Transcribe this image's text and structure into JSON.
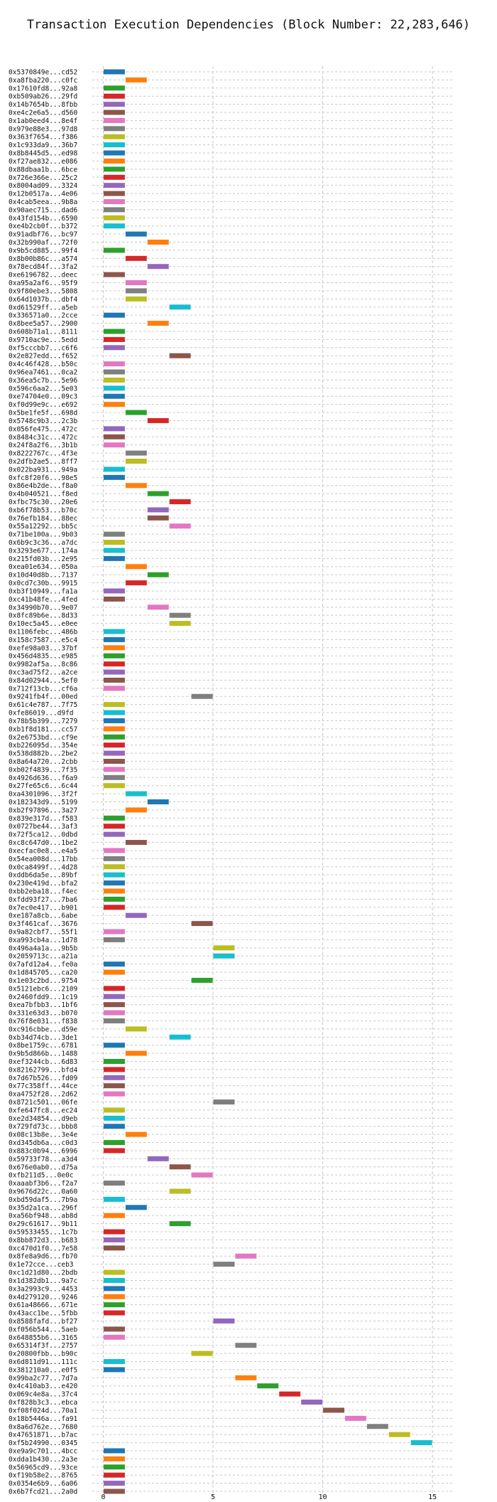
{
  "chart_data": {
    "type": "bar",
    "orientation": "horizontal",
    "title": "Transaction Execution Dependencies (Block Number: 22,283,646)",
    "xlabel": "",
    "ylabel": "",
    "xlim": [
      -0.5,
      16
    ],
    "x_ticks": [
      0,
      5,
      10,
      15
    ],
    "grid": true,
    "palette": [
      "#1f77b4",
      "#ff7f0e",
      "#2ca02c",
      "#d62728",
      "#9467bd",
      "#8c564b",
      "#e377c2",
      "#7f7f7f",
      "#bcbd22",
      "#17becf"
    ],
    "transactions": [
      {
        "hash": "0x5370849e...cd52",
        "start": 0,
        "end": 1
      },
      {
        "hash": "0xa8fba220...c0fc",
        "start": 1,
        "end": 2
      },
      {
        "hash": "0x17610fd8...92a8",
        "start": 0,
        "end": 1
      },
      {
        "hash": "0xb509ab26...29fd",
        "start": 0,
        "end": 1
      },
      {
        "hash": "0x14b7654b...8fbb",
        "start": 0,
        "end": 1
      },
      {
        "hash": "0xe4c2e6a5...d560",
        "start": 0,
        "end": 1
      },
      {
        "hash": "0x1ab0eed4...8e4f",
        "start": 0,
        "end": 1
      },
      {
        "hash": "0x979e88e3...97d8",
        "start": 0,
        "end": 1
      },
      {
        "hash": "0x363f7654...f386",
        "start": 0,
        "end": 1
      },
      {
        "hash": "0x1c933da9...36b7",
        "start": 0,
        "end": 1
      },
      {
        "hash": "0x8b8445d5...ed98",
        "start": 0,
        "end": 1
      },
      {
        "hash": "0xf27ae832...e086",
        "start": 0,
        "end": 1
      },
      {
        "hash": "0x88dbaa1b...6bce",
        "start": 0,
        "end": 1
      },
      {
        "hash": "0x726e366e...25c2",
        "start": 0,
        "end": 1
      },
      {
        "hash": "0x8004ad09...3324",
        "start": 0,
        "end": 1
      },
      {
        "hash": "0x12b0517a...4e06",
        "start": 0,
        "end": 1
      },
      {
        "hash": "0x4cab5eea...9b8a",
        "start": 0,
        "end": 1
      },
      {
        "hash": "0x90aec715...dad6",
        "start": 0,
        "end": 1
      },
      {
        "hash": "0x43fd154b...6590",
        "start": 0,
        "end": 1
      },
      {
        "hash": "0xe4b2cb0f...b372",
        "start": 0,
        "end": 1
      },
      {
        "hash": "0x91adbf76...bc97",
        "start": 1,
        "end": 2
      },
      {
        "hash": "0x32b990af...72f0",
        "start": 2,
        "end": 3
      },
      {
        "hash": "0x9b5cd885...99f4",
        "start": 0,
        "end": 1
      },
      {
        "hash": "0x8b00b86c...a574",
        "start": 1,
        "end": 2
      },
      {
        "hash": "0x78ecd84f...3fa2",
        "start": 2,
        "end": 3
      },
      {
        "hash": "0xe6196782...deec",
        "start": 0,
        "end": 1
      },
      {
        "hash": "0xa95a2af6...95f9",
        "start": 1,
        "end": 2
      },
      {
        "hash": "0x9f80ebe3...5808",
        "start": 1,
        "end": 2
      },
      {
        "hash": "0x64d1037b...dbf4",
        "start": 1,
        "end": 2
      },
      {
        "hash": "0xd61529ff...a5eb",
        "start": 3,
        "end": 4
      },
      {
        "hash": "0x336571a0...2cce",
        "start": 0,
        "end": 1
      },
      {
        "hash": "0x8bee5a57...2900",
        "start": 2,
        "end": 3
      },
      {
        "hash": "0x608b71a1...8111",
        "start": 0,
        "end": 1
      },
      {
        "hash": "0x9710ac9e...5edd",
        "start": 0,
        "end": 1
      },
      {
        "hash": "0xf5cccbb7...c6f6",
        "start": 0,
        "end": 1
      },
      {
        "hash": "0x2e827edd...f652",
        "start": 3,
        "end": 4
      },
      {
        "hash": "0x4c46f428...b50c",
        "start": 0,
        "end": 1
      },
      {
        "hash": "0x96ea7461...0ca2",
        "start": 0,
        "end": 1
      },
      {
        "hash": "0x36ea5c7b...5e96",
        "start": 0,
        "end": 1
      },
      {
        "hash": "0x596c6aa2...5e03",
        "start": 0,
        "end": 1
      },
      {
        "hash": "0xe74704e0...09c3",
        "start": 0,
        "end": 1
      },
      {
        "hash": "0xf0d99e9c...e692",
        "start": 0,
        "end": 1
      },
      {
        "hash": "0x5be1fe5f...698d",
        "start": 1,
        "end": 2
      },
      {
        "hash": "0x5748c9b3...2c3b",
        "start": 2,
        "end": 3
      },
      {
        "hash": "0x056fe475...472c",
        "start": 0,
        "end": 1
      },
      {
        "hash": "0x8484c31c...472c",
        "start": 0,
        "end": 1
      },
      {
        "hash": "0x24f8a2f6...3b1b",
        "start": 0,
        "end": 1
      },
      {
        "hash": "0x8222767c...4f3e",
        "start": 1,
        "end": 2
      },
      {
        "hash": "0x2dfb2ae5...8ff7",
        "start": 1,
        "end": 2
      },
      {
        "hash": "0x022ba931...949a",
        "start": 0,
        "end": 1
      },
      {
        "hash": "0xfc8f20f6...98e5",
        "start": 0,
        "end": 1
      },
      {
        "hash": "0x86e4b2de...f8a0",
        "start": 1,
        "end": 2
      },
      {
        "hash": "0x4b040521...f8ed",
        "start": 2,
        "end": 3
      },
      {
        "hash": "0xfbc75c30...20e6",
        "start": 3,
        "end": 4
      },
      {
        "hash": "0xb6f78b53...b70c",
        "start": 2,
        "end": 3
      },
      {
        "hash": "0x76efb184...88ec",
        "start": 2,
        "end": 3
      },
      {
        "hash": "0x55a12292...bb5c",
        "start": 3,
        "end": 4
      },
      {
        "hash": "0x71be100a...9b03",
        "start": 0,
        "end": 1
      },
      {
        "hash": "0x6b9c3c36...a7dc",
        "start": 0,
        "end": 1
      },
      {
        "hash": "0x3293e677...174a",
        "start": 0,
        "end": 1
      },
      {
        "hash": "0x215fd03b...2e95",
        "start": 0,
        "end": 1
      },
      {
        "hash": "0xea01e634...050a",
        "start": 1,
        "end": 2
      },
      {
        "hash": "0x10d40d8b...7137",
        "start": 2,
        "end": 3
      },
      {
        "hash": "0x0cd7c30b...9915",
        "start": 1,
        "end": 2
      },
      {
        "hash": "0xb3f10949...fa1a",
        "start": 0,
        "end": 1
      },
      {
        "hash": "0xc41b48fe...4fed",
        "start": 0,
        "end": 1
      },
      {
        "hash": "0x34990b70...9e07",
        "start": 2,
        "end": 3
      },
      {
        "hash": "0x8fc89b6e...8d33",
        "start": 3,
        "end": 4
      },
      {
        "hash": "0x10ec5a45...e0ee",
        "start": 3,
        "end": 4
      },
      {
        "hash": "0x1106febc...486b",
        "start": 0,
        "end": 1
      },
      {
        "hash": "0x158c7587...e5c4",
        "start": 0,
        "end": 1
      },
      {
        "hash": "0xefe98a03...37bf",
        "start": 0,
        "end": 1
      },
      {
        "hash": "0x456d4835...e985",
        "start": 0,
        "end": 1
      },
      {
        "hash": "0x9982af5a...8c86",
        "start": 0,
        "end": 1
      },
      {
        "hash": "0xc3ad75f2...a2ce",
        "start": 0,
        "end": 1
      },
      {
        "hash": "0x84d02944...5ef0",
        "start": 0,
        "end": 1
      },
      {
        "hash": "0x712f13cb...cf6a",
        "start": 0,
        "end": 1
      },
      {
        "hash": "0x9241fb4f...00ed",
        "start": 4,
        "end": 5
      },
      {
        "hash": "0x61c4e787...7f75",
        "start": 0,
        "end": 1
      },
      {
        "hash": "0xfe86019...d9fd",
        "start": 0,
        "end": 1
      },
      {
        "hash": "0x78b5b399...7279",
        "start": 0,
        "end": 1
      },
      {
        "hash": "0xb1f8d181...cc57",
        "start": 0,
        "end": 1
      },
      {
        "hash": "0x2e6753bd...cf9e",
        "start": 0,
        "end": 1
      },
      {
        "hash": "0xb226095d...354e",
        "start": 0,
        "end": 1
      },
      {
        "hash": "0x538d882b...2be2",
        "start": 0,
        "end": 1
      },
      {
        "hash": "0x8a64a720...2cbb",
        "start": 0,
        "end": 1
      },
      {
        "hash": "0xb02f4839...7f35",
        "start": 0,
        "end": 1
      },
      {
        "hash": "0x4926d636...f6a9",
        "start": 0,
        "end": 1
      },
      {
        "hash": "0x27fe65c6...6c44",
        "start": 0,
        "end": 1
      },
      {
        "hash": "0xa4301096...3f2f",
        "start": 1,
        "end": 2
      },
      {
        "hash": "0x182343d9...5199",
        "start": 2,
        "end": 3
      },
      {
        "hash": "0xb2f97896...3a27",
        "start": 1,
        "end": 2
      },
      {
        "hash": "0x839e317d...f583",
        "start": 0,
        "end": 1
      },
      {
        "hash": "0x0727be44...3af3",
        "start": 0,
        "end": 1
      },
      {
        "hash": "0x72f5ca12...0dbd",
        "start": 0,
        "end": 1
      },
      {
        "hash": "0xc8c647d0...1be2",
        "start": 1,
        "end": 2
      },
      {
        "hash": "0xecfac0e8...e4a5",
        "start": 0,
        "end": 1
      },
      {
        "hash": "0x54ea008d...17bb",
        "start": 0,
        "end": 1
      },
      {
        "hash": "0x0ca8499f...4d28",
        "start": 0,
        "end": 1
      },
      {
        "hash": "0xddb6da5e...89bf",
        "start": 0,
        "end": 1
      },
      {
        "hash": "0x230e419d...bfa2",
        "start": 0,
        "end": 1
      },
      {
        "hash": "0xbb2eba18...f4ec",
        "start": 0,
        "end": 1
      },
      {
        "hash": "0xfdd93f27...7ba6",
        "start": 0,
        "end": 1
      },
      {
        "hash": "0x7ec0e417...b901",
        "start": 0,
        "end": 1
      },
      {
        "hash": "0xe187a8cb...6abe",
        "start": 1,
        "end": 2
      },
      {
        "hash": "0x3f461caf...3676",
        "start": 4,
        "end": 5
      },
      {
        "hash": "0x9a82cbf7...55f1",
        "start": 0,
        "end": 1
      },
      {
        "hash": "0xa993cb4a...1d78",
        "start": 0,
        "end": 1
      },
      {
        "hash": "0x496a4a1a...9b5b",
        "start": 5,
        "end": 6
      },
      {
        "hash": "0x2059713c...a21a",
        "start": 5,
        "end": 6
      },
      {
        "hash": "0x7afd12a4...fe0a",
        "start": 0,
        "end": 1
      },
      {
        "hash": "0x1d845705...ca20",
        "start": 0,
        "end": 1
      },
      {
        "hash": "0x1e03c2bd...9754",
        "start": 4,
        "end": 5
      },
      {
        "hash": "0x5121ebc6...2109",
        "start": 0,
        "end": 1
      },
      {
        "hash": "0x2460fdd9...1c19",
        "start": 0,
        "end": 1
      },
      {
        "hash": "0xea7bfbb3...1bf6",
        "start": 0,
        "end": 1
      },
      {
        "hash": "0x331e63d3...b070",
        "start": 0,
        "end": 1
      },
      {
        "hash": "0x76f8e031...f838",
        "start": 0,
        "end": 1
      },
      {
        "hash": "0xc916cbbe...d59e",
        "start": 1,
        "end": 2
      },
      {
        "hash": "0xb34d74cb...3de1",
        "start": 3,
        "end": 4
      },
      {
        "hash": "0x8be1759c...6781",
        "start": 0,
        "end": 1
      },
      {
        "hash": "0x9b5d866b...1488",
        "start": 1,
        "end": 2
      },
      {
        "hash": "0xef3244cb...6d83",
        "start": 0,
        "end": 1
      },
      {
        "hash": "0x82162799...bfd4",
        "start": 0,
        "end": 1
      },
      {
        "hash": "0x7d67b526...fd09",
        "start": 0,
        "end": 1
      },
      {
        "hash": "0x77c358ff...44ce",
        "start": 0,
        "end": 1
      },
      {
        "hash": "0xa4752f28...2d62",
        "start": 0,
        "end": 1
      },
      {
        "hash": "0x8721c501...06fe",
        "start": 5,
        "end": 6
      },
      {
        "hash": "0xfe647fc8...ec24",
        "start": 0,
        "end": 1
      },
      {
        "hash": "0xe2d34854...d9eb",
        "start": 0,
        "end": 1
      },
      {
        "hash": "0x729fd73c...bbb8",
        "start": 0,
        "end": 1
      },
      {
        "hash": "0x08c13b8e...3e4e",
        "start": 1,
        "end": 2
      },
      {
        "hash": "0xd345db6a...c0d3",
        "start": 0,
        "end": 1
      },
      {
        "hash": "0x883c0b94...6996",
        "start": 0,
        "end": 1
      },
      {
        "hash": "0x59733f78...a3d4",
        "start": 2,
        "end": 3
      },
      {
        "hash": "0x676e0ab0...d75a",
        "start": 3,
        "end": 4
      },
      {
        "hash": "0xfb211d5...0e0c",
        "start": 4,
        "end": 5
      },
      {
        "hash": "0xaaabf3b6...f2a7",
        "start": 0,
        "end": 1
      },
      {
        "hash": "0x9676d22c...0a60",
        "start": 3,
        "end": 4
      },
      {
        "hash": "0xbd59daf5...7b9a",
        "start": 0,
        "end": 1
      },
      {
        "hash": "0x35d2a1ca...296f",
        "start": 1,
        "end": 2
      },
      {
        "hash": "0xa56bf948...ab8d",
        "start": 0,
        "end": 1
      },
      {
        "hash": "0x29c61617...9b11",
        "start": 3,
        "end": 4
      },
      {
        "hash": "0x59533455...1c7b",
        "start": 0,
        "end": 1
      },
      {
        "hash": "0x8bb872d3...b683",
        "start": 0,
        "end": 1
      },
      {
        "hash": "0xc470d1f0...7e58",
        "start": 0,
        "end": 1
      },
      {
        "hash": "0x8fe8a9d6...fb70",
        "start": 6,
        "end": 7
      },
      {
        "hash": "0x1e72cce...ceb3",
        "start": 5,
        "end": 6
      },
      {
        "hash": "0xc1d21d80...2bdb",
        "start": 0,
        "end": 1
      },
      {
        "hash": "0x1d382db1...9a7c",
        "start": 0,
        "end": 1
      },
      {
        "hash": "0x3a2993c9...4453",
        "start": 0,
        "end": 1
      },
      {
        "hash": "0x4d279120...9246",
        "start": 0,
        "end": 1
      },
      {
        "hash": "0x61a48666...671e",
        "start": 0,
        "end": 1
      },
      {
        "hash": "0x43acc1be...5fbb",
        "start": 0,
        "end": 1
      },
      {
        "hash": "0x8588fafd...bf27",
        "start": 5,
        "end": 6
      },
      {
        "hash": "0xf056b544...5aeb",
        "start": 0,
        "end": 1
      },
      {
        "hash": "0x648855b6...3165",
        "start": 0,
        "end": 1
      },
      {
        "hash": "0x65314f3f...2757",
        "start": 6,
        "end": 7
      },
      {
        "hash": "0x20800fbb...b90c",
        "start": 4,
        "end": 5
      },
      {
        "hash": "0x6d811d91...111c",
        "start": 0,
        "end": 1
      },
      {
        "hash": "0x381210a0...e0f5",
        "start": 0,
        "end": 1
      },
      {
        "hash": "0x99ba2c77...7d7a",
        "start": 6,
        "end": 7
      },
      {
        "hash": "0x4c410ab3...e420",
        "start": 7,
        "end": 8
      },
      {
        "hash": "0x069c4e8a...37c4",
        "start": 8,
        "end": 9
      },
      {
        "hash": "0xf828b3c3...ebca",
        "start": 9,
        "end": 10
      },
      {
        "hash": "0xf08f024d...70a1",
        "start": 10,
        "end": 11
      },
      {
        "hash": "0x18b5446a...fa91",
        "start": 11,
        "end": 12
      },
      {
        "hash": "0x8a6d762e...7680",
        "start": 12,
        "end": 13
      },
      {
        "hash": "0x47651871...b7ac",
        "start": 13,
        "end": 14
      },
      {
        "hash": "0xf5b24990...0345",
        "start": 14,
        "end": 15
      },
      {
        "hash": "0xe9a9c701...4bcc",
        "start": 0,
        "end": 1
      },
      {
        "hash": "0xdda1b430...2a3e",
        "start": 0,
        "end": 1
      },
      {
        "hash": "0x56965cd9...93ce",
        "start": 0,
        "end": 1
      },
      {
        "hash": "0xf19b58e2...8765",
        "start": 0,
        "end": 1
      },
      {
        "hash": "0x0354e6b9...6a06",
        "start": 0,
        "end": 1
      },
      {
        "hash": "0x6b7fcd21...2a0d",
        "start": 0,
        "end": 1
      }
    ]
  }
}
